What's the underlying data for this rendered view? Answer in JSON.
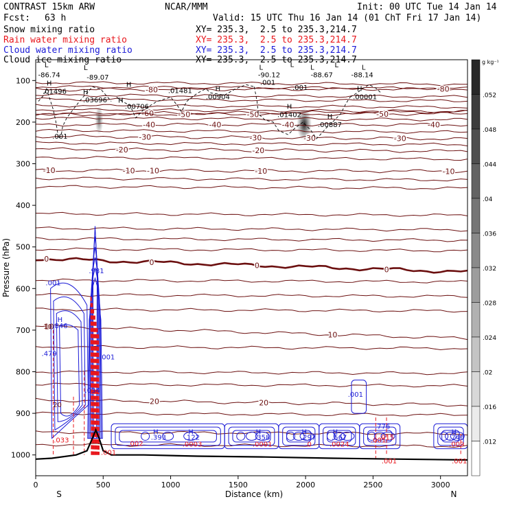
{
  "header": {
    "model": "CONTRAST 15km ARW",
    "org": "NCAR/MMM",
    "init": "Init: 00 UTC Tue 14 Jan 14",
    "fcst_label": "Fcst:",
    "fcst_value": "63 h",
    "valid": "Valid: 15 UTC Thu 16 Jan 14 (01 ChT Fri 17 Jan 14)"
  },
  "fields": [
    {
      "name": "Snow mixing ratio",
      "xy": "XY= 235.3,  2.5 to 235.3,214.7",
      "color": "#000000"
    },
    {
      "name": "Rain water mixing ratio",
      "xy": "XY= 235.3,  2.5 to 235.3,214.7",
      "color": "#e8161c"
    },
    {
      "name": "Cloud water mixing ratio",
      "xy": "XY= 235.3,  2.5 to 235.3,214.7",
      "color": "#1a1ad6"
    },
    {
      "name": "Cloud ice mixing ratio",
      "xy": "XY= 235.3,  2.5 to 235.3,214.7",
      "color": "#000000"
    }
  ],
  "chart_data": {
    "type": "contour",
    "xlabel": "Distance (km)",
    "ylabel": "Pressure (hPa)",
    "xlim": [
      0,
      3200
    ],
    "ylim": [
      1050,
      50
    ],
    "xticks": [
      0,
      500,
      1000,
      1500,
      2000,
      2500,
      3000
    ],
    "yticks": [
      100,
      200,
      300,
      400,
      500,
      600,
      700,
      800,
      900,
      1000
    ],
    "x_end_labels": {
      "left": "S",
      "right": "N"
    },
    "colorbar": {
      "unit": "g kg⁻¹",
      "ticks": [
        ".052",
        ".048",
        ".044",
        ".04",
        ".036",
        ".032",
        ".028",
        ".024",
        ".02",
        ".016",
        ".012"
      ]
    },
    "temperature_isotherms": [
      {
        "value": "-80",
        "p_west": 122,
        "p_east": 120,
        "labels_km": [
          860,
          3020
        ]
      },
      {
        "value": "-60",
        "p_west": 180,
        "p_east": 175,
        "labels_km": [
          830
        ]
      },
      {
        "value": "-50",
        "p_west": 182,
        "p_east": 180,
        "labels_km": [
          1100,
          1610,
          2570
        ]
      },
      {
        "value": "-40",
        "p_west": 206,
        "p_east": 206,
        "labels_km": [
          840,
          1330,
          1870,
          2950
        ]
      },
      {
        "value": "-30",
        "p_west": 234,
        "p_east": 240,
        "labels_km": [
          810,
          1630,
          2030,
          2700
        ]
      },
      {
        "value": "-20",
        "p_west": 265,
        "p_east": 270,
        "labels_km": [
          640,
          1650
        ]
      },
      {
        "value": "-10",
        "p_west": 316,
        "p_east": 318,
        "labels_km": [
          100,
          690,
          870,
          1670,
          3060
        ]
      },
      {
        "value": "0",
        "p_west": 528,
        "p_east": 560,
        "labels_km": [
          80,
          860,
          1640,
          2600
        ]
      },
      {
        "value": "10",
        "p_west": 690,
        "p_east": 720,
        "labels_km": [
          100,
          2200
        ]
      },
      {
        "value": "20",
        "p_west": 868,
        "p_east": 880,
        "labels_km": [
          880,
          1690
        ]
      }
    ],
    "extra_isotherm_levels_hpa": [
      105,
      115,
      135,
      145,
      160,
      170,
      190,
      220,
      250,
      285,
      335,
      355,
      420,
      455,
      480,
      505,
      580,
      615,
      650,
      740,
      800,
      830,
      900,
      945,
      975
    ],
    "annotations": [
      {
        "text": "L",
        "x_km": 80,
        "p": 68
      },
      {
        "text": "L",
        "x_km": 370,
        "p": 75
      },
      {
        "text": "L",
        "x_km": 1670,
        "p": 74
      },
      {
        "text": "L",
        "x_km": 1900,
        "p": 67
      },
      {
        "text": "L",
        "x_km": 2050,
        "p": 74
      },
      {
        "text": "L",
        "x_km": 2230,
        "p": 68
      },
      {
        "text": "L",
        "x_km": 2430,
        "p": 74
      },
      {
        "text": "-86.74",
        "x_km": 100,
        "p": 92
      },
      {
        "text": "-89.07",
        "x_km": 460,
        "p": 98
      },
      {
        "text": "-90.12",
        "x_km": 1730,
        "p": 92
      },
      {
        "text": "-88.67",
        "x_km": 2120,
        "p": 92
      },
      {
        "text": "-88.14",
        "x_km": 2420,
        "p": 92
      },
      {
        "text": "H",
        "x_km": 100,
        "p": 112
      },
      {
        "text": ".01496",
        "x_km": 140,
        "p": 132
      },
      {
        "text": "H",
        "x_km": 370,
        "p": 133
      },
      {
        "text": ".03696",
        "x_km": 440,
        "p": 152
      },
      {
        "text": "H",
        "x_km": 690,
        "p": 115
      },
      {
        "text": ".01481",
        "x_km": 1070,
        "p": 130
      },
      {
        "text": "H",
        "x_km": 630,
        "p": 153
      },
      {
        "text": ".00706",
        "x_km": 750,
        "p": 168
      },
      {
        "text": "H",
        "x_km": 1350,
        "p": 125
      },
      {
        "text": ".00904",
        "x_km": 1350,
        "p": 145
      },
      {
        "text": ".001",
        "x_km": 1720,
        "p": 110
      },
      {
        "text": ".001",
        "x_km": 1960,
        "p": 123
      },
      {
        "text": "H",
        "x_km": 2400,
        "p": 125
      },
      {
        "text": ".00001",
        "x_km": 2440,
        "p": 145
      },
      {
        "text": "H",
        "x_km": 1880,
        "p": 168
      },
      {
        "text": ".01402",
        "x_km": 1880,
        "p": 188
      },
      {
        "text": "H",
        "x_km": 2180,
        "p": 192
      },
      {
        "text": ".00887",
        "x_km": 2180,
        "p": 212
      },
      {
        "text": ".001",
        "x_km": 180,
        "p": 240
      },
      {
        "text": ".001",
        "x_km": 130,
        "p": 592
      },
      {
        "text": "H",
        "x_km": 180,
        "p": 680
      },
      {
        "text": ".846",
        "x_km": 180,
        "p": 695
      },
      {
        "text": "10",
        "x_km": 90,
        "p": 697
      },
      {
        "text": ".981",
        "x_km": 450,
        "p": 563
      },
      {
        "text": ".479",
        "x_km": 100,
        "p": 762
      },
      {
        "text": ".001",
        "x_km": 530,
        "p": 770
      },
      {
        "text": ".034",
        "x_km": 420,
        "p": 850
      },
      {
        "text": "20",
        "x_km": 160,
        "p": 885
      },
      {
        "text": ".033",
        "x_km": 190,
        "p": 970
      },
      {
        "text": "H",
        "x_km": 890,
        "p": 950
      },
      {
        "text": ".393",
        "x_km": 910,
        "p": 963
      },
      {
        "text": "H",
        "x_km": 1150,
        "p": 950
      },
      {
        "text": ".122",
        "x_km": 1160,
        "p": 963
      },
      {
        "text": ".0003",
        "x_km": 1160,
        "p": 980
      },
      {
        "text": ".002",
        "x_km": 740,
        "p": 978
      },
      {
        "text": ".001",
        "x_km": 540,
        "p": 1000
      },
      {
        "text": "H",
        "x_km": 1650,
        "p": 950
      },
      {
        "text": ".358",
        "x_km": 1680,
        "p": 963
      },
      {
        "text": ".0001",
        "x_km": 1680,
        "p": 980
      },
      {
        "text": "H",
        "x_km": 1990,
        "p": 950
      },
      {
        "text": ".297",
        "x_km": 2020,
        "p": 963
      },
      {
        "text": ".0",
        "x_km": 2020,
        "p": 980
      },
      {
        "text": "H",
        "x_km": 2220,
        "p": 950
      },
      {
        "text": ".567",
        "x_km": 2250,
        "p": 963
      },
      {
        "text": ".0024",
        "x_km": 2250,
        "p": 980
      },
      {
        "text": ".001",
        "x_km": 2370,
        "p": 860
      },
      {
        "text": ".776",
        "x_km": 2570,
        "p": 937
      },
      {
        "text": ".015",
        "x_km": 2600,
        "p": 963
      },
      {
        "text": ".001",
        "x_km": 2540,
        "p": 970
      },
      {
        "text": "H",
        "x_km": 3100,
        "p": 950
      },
      {
        "text": ".746",
        "x_km": 3120,
        "p": 963
      },
      {
        "text": ".009",
        "x_km": 3120,
        "p": 980
      },
      {
        "text": ".001",
        "x_km": 2620,
        "p": 1020
      },
      {
        "text": ".001",
        "x_km": 3140,
        "p": 1020
      }
    ],
    "snow_blobs": [
      {
        "x_km": 470,
        "p": 195,
        "w_km": 60,
        "h_hpa": 70,
        "intensity": 0.55
      },
      {
        "x_km": 1990,
        "p": 205,
        "w_km": 110,
        "h_hpa": 80,
        "intensity": 0.85
      }
    ],
    "terrain_surface": [
      [
        0,
        1010
      ],
      [
        120,
        1008
      ],
      [
        300,
        1000
      ],
      [
        380,
        990
      ],
      [
        420,
        960
      ],
      [
        445,
        940
      ],
      [
        470,
        960
      ],
      [
        500,
        990
      ],
      [
        560,
        1000
      ],
      [
        800,
        1000
      ],
      [
        1200,
        1003
      ],
      [
        1700,
        1005
      ],
      [
        2200,
        1008
      ],
      [
        2700,
        1010
      ],
      [
        3200,
        1012
      ]
    ]
  }
}
